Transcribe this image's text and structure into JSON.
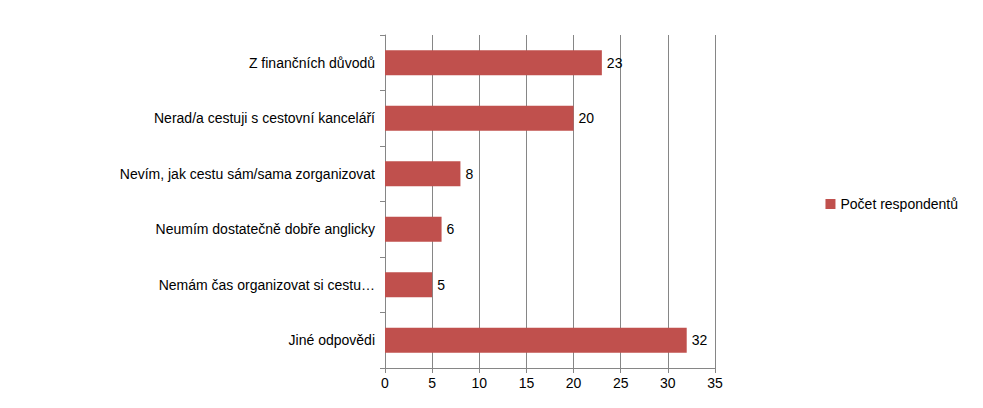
{
  "chart_data": {
    "type": "bar",
    "orientation": "horizontal",
    "categories": [
      "Z finančních důvodů",
      "Nerad/a cestuji s cestovní kanceláří",
      "Nevím, jak cestu sám/sama zorganizovat",
      "Neumím dostatečně dobře anglicky",
      "Nemám čas organizovat si cestu…",
      "Jiné odpovědi"
    ],
    "series": [
      {
        "name": "Počet respondentů",
        "color": "#c0504d",
        "values": [
          23,
          20,
          8,
          6,
          5,
          32
        ]
      }
    ],
    "xlim": [
      0,
      35
    ],
    "xticks": [
      0,
      5,
      10,
      15,
      20,
      25,
      30,
      35
    ],
    "grid": true,
    "data_labels": true,
    "legend": "right"
  }
}
